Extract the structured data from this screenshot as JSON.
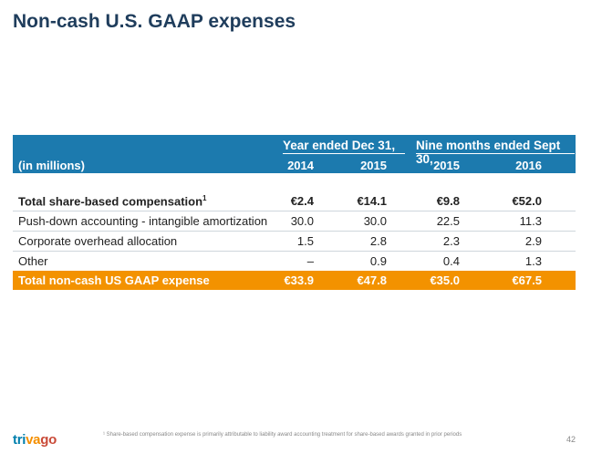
{
  "title": "Non-cash U.S. GAAP expenses",
  "table": {
    "unit_label": "(in millions)",
    "groups": [
      "Year ended Dec 31,",
      "Nine months ended Sept 30,"
    ],
    "years": [
      "2014",
      "2015",
      "2015",
      "2016"
    ],
    "rows": [
      {
        "label": "Total share-based compensation",
        "sup": "1",
        "values": [
          "€2.4",
          "€14.1",
          "€9.8",
          "€52.0"
        ]
      },
      {
        "label": "Push-down accounting - intangible amortization",
        "values": [
          "30.0",
          "30.0",
          "22.5",
          "11.3"
        ]
      },
      {
        "label": "Corporate overhead allocation",
        "values": [
          "1.5",
          "2.8",
          "2.3",
          "2.9"
        ]
      },
      {
        "label": "Other",
        "values": [
          "–",
          "0.9",
          "0.4",
          "1.3"
        ]
      }
    ],
    "total": {
      "label": "Total non-cash US GAAP expense",
      "values": [
        "€33.9",
        "€47.8",
        "€35.0",
        "€67.5"
      ]
    }
  },
  "footnote": "¹ Share-based compensation expense is primarily attributable to liability award accounting treatment for share-based awards granted in prior periods",
  "logo": {
    "part1": "tri",
    "part2": "va",
    "part3": "go"
  },
  "page_number": "42",
  "colors": {
    "header_blue": "#1c7aae",
    "total_orange": "#f39200",
    "title": "#1f3d5c"
  }
}
